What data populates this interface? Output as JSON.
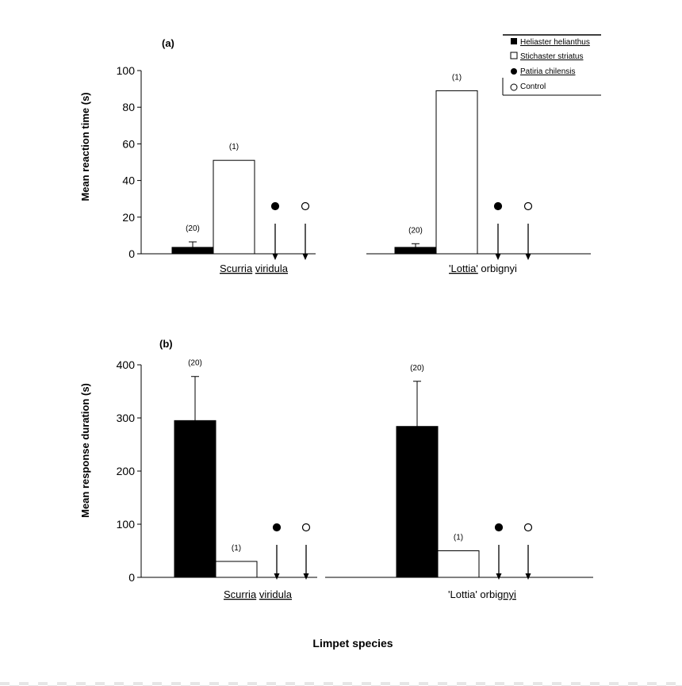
{
  "colors": {
    "bar_filled": "#000000",
    "bar_open": "#ffffff",
    "axis": "#000000"
  },
  "figure": {
    "xlabel": "Limpet species",
    "legend": {
      "placement": "top-right",
      "items": [
        {
          "label": "Heliaster helianthus",
          "marker": "filled-square"
        },
        {
          "label": "Stichaster striatus",
          "marker": "open-square"
        },
        {
          "label": "Patiria chilensis",
          "marker": "filled-circle"
        },
        {
          "label": "Control",
          "marker": "open-circle"
        }
      ]
    }
  },
  "chart_data": [
    {
      "type": "bar",
      "panel": "(a)",
      "ylabel": "Mean reaction time (s)",
      "ylim": [
        0,
        100
      ],
      "yticks": [
        "0",
        "20",
        "40",
        "60",
        "80",
        "100"
      ],
      "groups": [
        {
          "label_parts": [
            {
              "text": "Scurria",
              "underline": true
            },
            {
              "text": " "
            },
            {
              "text": "viridula",
              "underline": true
            }
          ],
          "bars": [
            {
              "series": "Heliaster helianthus",
              "value": 3.5,
              "error": 3,
              "n": "(20)"
            },
            {
              "series": "Stichaster striatus",
              "value": 51,
              "error": 0,
              "n": "(1)"
            },
            {
              "series": "Patiria chilensis",
              "value": null,
              "no_response": true
            },
            {
              "series": "Control",
              "value": null,
              "no_response": true
            }
          ]
        },
        {
          "label_parts": [
            {
              "text": "'Lottia'",
              "underline": true
            },
            {
              "text": " orbignyi"
            }
          ],
          "bars": [
            {
              "series": "Heliaster helianthus",
              "value": 3.5,
              "error": 2,
              "n": "(20)"
            },
            {
              "series": "Stichaster striatus",
              "value": 89,
              "error": 0,
              "n": "(1)"
            },
            {
              "series": "Patiria chilensis",
              "value": null,
              "no_response": true
            },
            {
              "series": "Control",
              "value": null,
              "no_response": true
            }
          ]
        }
      ]
    },
    {
      "type": "bar",
      "panel": "(b)",
      "ylabel": "Mean response duration (s)",
      "ylim": [
        0,
        400
      ],
      "yticks": [
        "0",
        "100",
        "200",
        "300",
        "400"
      ],
      "groups": [
        {
          "label_parts": [
            {
              "text": "Scurria",
              "underline": true
            },
            {
              "text": " "
            },
            {
              "text": "viridula",
              "underline": true
            }
          ],
          "bars": [
            {
              "series": "Heliaster helianthus",
              "value": 295,
              "error": 83,
              "n": "(20)"
            },
            {
              "series": "Stichaster striatus",
              "value": 30,
              "error": 0,
              "n": "(1)"
            },
            {
              "series": "Patiria chilensis",
              "value": null,
              "no_response": true
            },
            {
              "series": "Control",
              "value": null,
              "no_response": true
            }
          ]
        },
        {
          "label_parts": [
            {
              "text": "'Lottia'",
              "underline": false
            },
            {
              "text": " orbi"
            },
            {
              "text": "gnyi",
              "underline": true
            }
          ],
          "bars": [
            {
              "series": "Heliaster helianthus",
              "value": 284,
              "error": 85,
              "n": "(20)"
            },
            {
              "series": "Stichaster striatus",
              "value": 50,
              "error": 0,
              "n": "(1)"
            },
            {
              "series": "Patiria chilensis",
              "value": null,
              "no_response": true
            },
            {
              "series": "Control",
              "value": null,
              "no_response": true
            }
          ]
        }
      ]
    }
  ]
}
